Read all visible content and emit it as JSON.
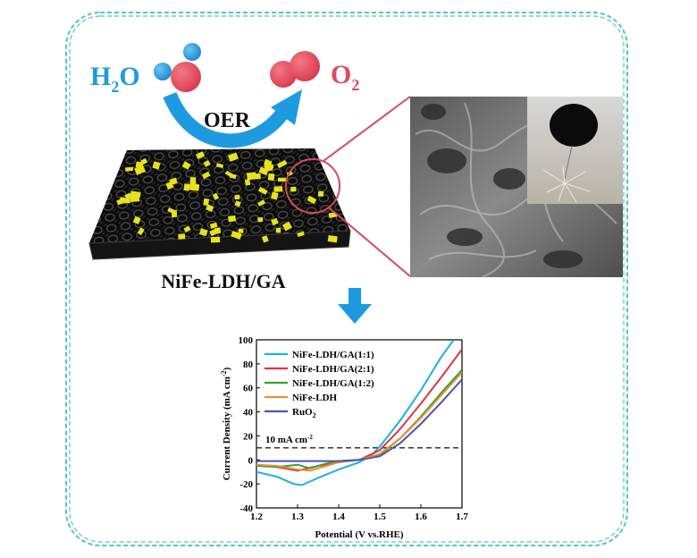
{
  "molecules": {
    "water_main": "H",
    "water_sub": "2",
    "water_tail": "O",
    "oxygen_main": "O",
    "oxygen_sub": "2",
    "reaction": "OER"
  },
  "material_label": "NiFe-LDH/GA",
  "colors": {
    "border": "#4fc8c0",
    "water": "#1e9be0",
    "oxygen": "#e04a5c",
    "arrow": "#1e9be0",
    "callout": "#d9485f"
  },
  "chart_data": {
    "type": "line",
    "xlabel": "Potential (V vs.RHE)",
    "ylabel_main": "Current Density (mA cm",
    "ylabel_sup": "-2",
    "ylabel_end": ")",
    "xlim": [
      1.2,
      1.7
    ],
    "ylim": [
      -40,
      100
    ],
    "xticks": [
      "1.2",
      "1.3",
      "1.4",
      "1.5",
      "1.6",
      "1.7"
    ],
    "yticks": [
      "-40",
      "-20",
      "0",
      "20",
      "40",
      "60",
      "80",
      "100"
    ],
    "reference_line": {
      "y": 10,
      "label_main": "10 mA cm",
      "label_sup": "-2"
    },
    "series": [
      {
        "name": "NiFe-LDH/GA(1:1)",
        "color": "#1ab1e6",
        "x": [
          1.2,
          1.25,
          1.29,
          1.31,
          1.35,
          1.4,
          1.45,
          1.48,
          1.5,
          1.55,
          1.6,
          1.65,
          1.68
        ],
        "y": [
          -10,
          -14,
          -20,
          -21,
          -15,
          -8,
          -2,
          4,
          11,
          33,
          58,
          86,
          100
        ]
      },
      {
        "name": "NiFe-LDH/GA(2:1)",
        "color": "#d9364b",
        "x": [
          1.2,
          1.25,
          1.3,
          1.35,
          1.4,
          1.45,
          1.5,
          1.55,
          1.6,
          1.65,
          1.7
        ],
        "y": [
          -4,
          -6,
          -9,
          -5,
          -2,
          0,
          8,
          26,
          47,
          69,
          92
        ]
      },
      {
        "name": "NiFe-LDH/GA(1:2)",
        "color": "#3a9e3a",
        "x": [
          1.2,
          1.25,
          1.3,
          1.33,
          1.37,
          1.4,
          1.45,
          1.5,
          1.55,
          1.6,
          1.65,
          1.7
        ],
        "y": [
          -5,
          -6,
          -4,
          -7,
          -3,
          -1,
          0,
          4,
          18,
          36,
          56,
          75
        ]
      },
      {
        "name": "NiFe-LDH",
        "color": "#e8902d",
        "x": [
          1.2,
          1.25,
          1.3,
          1.33,
          1.37,
          1.4,
          1.45,
          1.5,
          1.55,
          1.6,
          1.65,
          1.7
        ],
        "y": [
          -4,
          -5,
          -8,
          -9,
          -5,
          -2,
          0,
          5,
          18,
          35,
          54,
          73
        ]
      },
      {
        "name_main": "RuO",
        "name_sub": "2",
        "color": "#4b57a8",
        "x": [
          1.2,
          1.3,
          1.4,
          1.45,
          1.5,
          1.55,
          1.6,
          1.65,
          1.7
        ],
        "y": [
          -1,
          -1,
          -1,
          0,
          3,
          14,
          30,
          48,
          67
        ]
      }
    ]
  }
}
